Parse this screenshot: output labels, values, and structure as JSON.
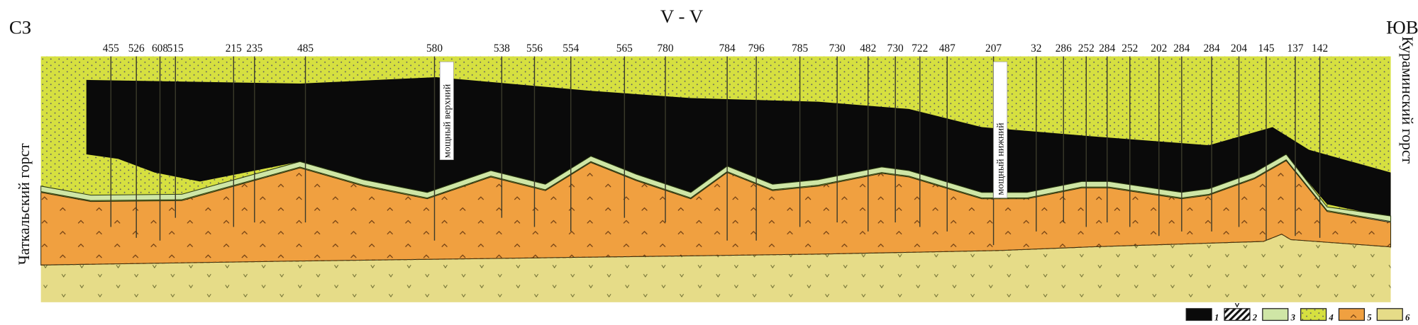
{
  "section_title": "V - V",
  "direction_left": "СЗ",
  "direction_right": "ЮВ",
  "side_label_left": "Чаткальский горст",
  "side_label_right": "Кураминский горст",
  "inset_label_upper": "мощный верхний",
  "inset_label_lower": "мощный нижний",
  "wells": [
    "455",
    "526",
    "608",
    "515",
    "215",
    "235",
    "485",
    "580",
    "538",
    "556",
    "554",
    "565",
    "780",
    "784",
    "796",
    "785",
    "730",
    "482",
    "730",
    "722",
    "487",
    "207",
    "32",
    "286",
    "252",
    "284",
    "252",
    "202",
    "284",
    "284",
    "204",
    "145",
    "137",
    "142"
  ],
  "legend": [
    {
      "number": "1",
      "color": "#0a0a0a",
      "pattern": "solid-black"
    },
    {
      "number": "2",
      "color": "#ffffff",
      "pattern": "hatched"
    },
    {
      "number": "3",
      "color": "#cfe6a6",
      "pattern": "plain-light-green"
    },
    {
      "number": "4",
      "color": "#d6e040",
      "pattern": "dotted-yellow-green"
    },
    {
      "number": "5",
      "color": "#f0a040",
      "pattern": "caret-orange"
    },
    {
      "number": "6",
      "color": "#e6dc88",
      "pattern": "v-pale-yellow"
    }
  ]
}
